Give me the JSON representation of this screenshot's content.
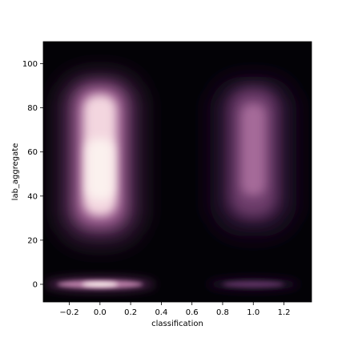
{
  "chart_data": {
    "type": "heatmap",
    "subtype": "2d-density",
    "xlabel": "classification",
    "ylabel": "lab_aggregate",
    "xlim": [
      -0.37,
      1.38
    ],
    "ylim": [
      -8,
      110
    ],
    "x_ticks": [
      -0.2,
      0.0,
      0.2,
      0.4,
      0.6,
      0.8,
      1.0,
      1.2
    ],
    "x_tick_labels": [
      "−0.2",
      "0.0",
      "0.2",
      "0.4",
      "0.6",
      "0.8",
      "1.0",
      "1.2"
    ],
    "y_ticks": [
      0,
      20,
      40,
      60,
      80,
      100
    ],
    "y_tick_labels": [
      "0",
      "20",
      "40",
      "60",
      "80",
      "100"
    ],
    "grid": false,
    "colormap": "cubehelix (dark purple to white)",
    "background_color": "#030206",
    "clusters": [
      {
        "x": 0.0,
        "y_range": [
          25,
          90
        ],
        "intensity": "high"
      },
      {
        "x": 0.0,
        "y": 0,
        "intensity": "high"
      },
      {
        "x": 1.0,
        "y_range": [
          30,
          88
        ],
        "intensity": "medium"
      },
      {
        "x": 1.0,
        "y": 0,
        "intensity": "low"
      }
    ]
  }
}
